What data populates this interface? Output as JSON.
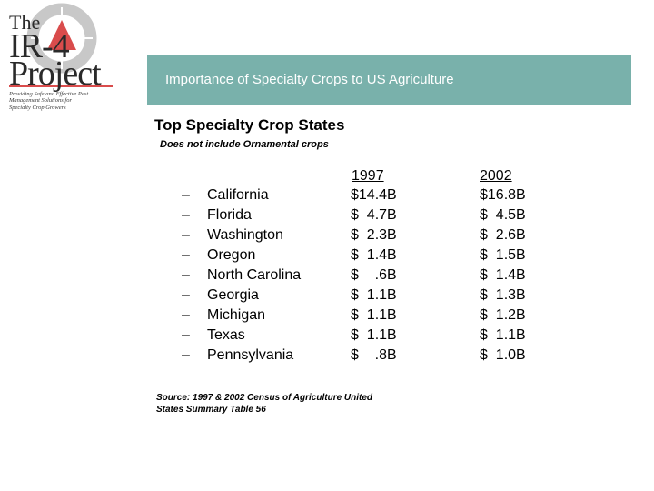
{
  "logo": {
    "line1": "The",
    "line2": "IR-4",
    "line3": "Project",
    "tagline": [
      "Providing Safe and Effective Pest",
      "Management Solutions for",
      "Specialty Crop Growers"
    ]
  },
  "banner": {
    "title": "Importance of Specialty Crops to US Agriculture"
  },
  "heading": "Top Specialty Crop States",
  "subheading": "Does not include Ornamental crops",
  "table": {
    "columns": [
      "1997",
      "2002"
    ],
    "bullet": "–",
    "rows": [
      {
        "state": "California",
        "v1997": "$14.4B",
        "v2002": "$16.8B"
      },
      {
        "state": "Florida",
        "v1997": "$  4.7B",
        "v2002": "$  4.5B"
      },
      {
        "state": "Washington",
        "v1997": "$  2.3B",
        "v2002": "$  2.6B"
      },
      {
        "state": "Oregon",
        "v1997": "$  1.4B",
        "v2002": "$  1.5B"
      },
      {
        "state": "North Carolina",
        "v1997": "$    .6B",
        "v2002": "$  1.4B"
      },
      {
        "state": "Georgia",
        "v1997": "$  1.1B",
        "v2002": "$  1.3B"
      },
      {
        "state": "Michigan",
        "v1997": "$  1.1B",
        "v2002": "$  1.2B"
      },
      {
        "state": "Texas",
        "v1997": "$  1.1B",
        "v2002": "$  1.1B"
      },
      {
        "state": "Pennsylvania",
        "v1997": "$    .8B",
        "v2002": "$  1.0B"
      }
    ]
  },
  "source": [
    "Source: 1997 & 2002 Census of Agriculture United",
    "States Summary Table 56"
  ],
  "colors": {
    "banner": "#79b1ab",
    "logo_accent": "#d94c4c",
    "logo_ring": "#c8c8c8"
  }
}
